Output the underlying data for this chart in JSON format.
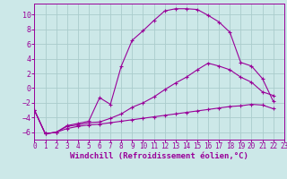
{
  "background_color": "#cce8e8",
  "grid_color": "#aacccc",
  "line_color": "#990099",
  "xlabel": "Windchill (Refroidissement éolien,°C)",
  "xlabel_fontsize": 6.5,
  "xtick_fontsize": 5.5,
  "ytick_fontsize": 6.0,
  "xlim": [
    0,
    23
  ],
  "ylim": [
    -7,
    11.5
  ],
  "yticks": [
    -6,
    -4,
    -2,
    0,
    2,
    4,
    6,
    8,
    10
  ],
  "xticks": [
    0,
    1,
    2,
    3,
    4,
    5,
    6,
    7,
    8,
    9,
    10,
    11,
    12,
    13,
    14,
    15,
    16,
    17,
    18,
    19,
    20,
    21,
    22,
    23
  ],
  "curve_top_x": [
    0,
    1,
    2,
    3,
    4,
    5,
    6,
    7,
    8,
    9,
    10,
    11,
    12,
    13,
    14,
    15,
    16,
    17,
    18,
    19,
    20,
    21,
    22
  ],
  "curve_top_y": [
    -3.0,
    -6.2,
    -6.0,
    -5.1,
    -4.8,
    -4.5,
    -1.3,
    -2.2,
    3.0,
    6.5,
    7.8,
    9.2,
    10.5,
    10.8,
    10.8,
    10.7,
    9.9,
    9.0,
    7.6,
    3.5,
    3.0,
    1.3,
    -1.8
  ],
  "curve_mid_x": [
    0,
    1,
    2,
    3,
    4,
    5,
    6,
    7,
    8,
    9,
    10,
    11,
    12,
    13,
    14,
    15,
    16,
    17,
    18,
    19,
    20,
    21,
    22
  ],
  "curve_mid_y": [
    -3.0,
    -6.2,
    -6.0,
    -5.2,
    -5.0,
    -4.7,
    -4.6,
    -4.1,
    -3.5,
    -2.6,
    -2.0,
    -1.2,
    -0.2,
    0.7,
    1.5,
    2.5,
    3.4,
    3.0,
    2.5,
    1.5,
    0.8,
    -0.5,
    -1.0
  ],
  "curve_bot_x": [
    0,
    1,
    2,
    3,
    4,
    5,
    6,
    7,
    8,
    9,
    10,
    11,
    12,
    13,
    14,
    15,
    16,
    17,
    18,
    19,
    20,
    21,
    22
  ],
  "curve_bot_y": [
    -3.0,
    -6.2,
    -6.0,
    -5.5,
    -5.2,
    -5.0,
    -4.9,
    -4.7,
    -4.5,
    -4.3,
    -4.1,
    -3.9,
    -3.7,
    -3.5,
    -3.3,
    -3.1,
    -2.9,
    -2.7,
    -2.5,
    -2.4,
    -2.2,
    -2.3,
    -2.8
  ]
}
